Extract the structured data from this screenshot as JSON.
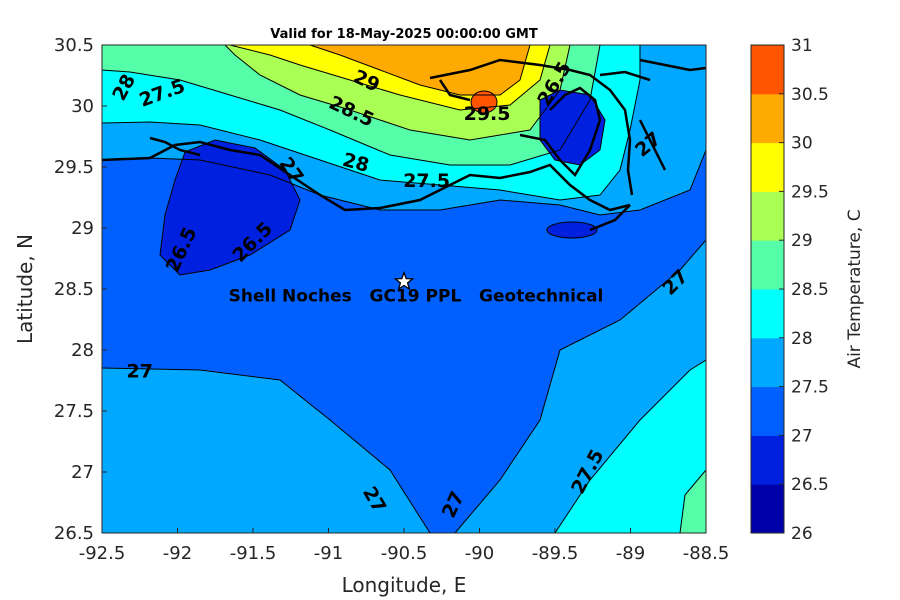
{
  "title": "Valid for 18-May-2025 00:00:00 GMT",
  "map": {
    "xlabel": "Longitude, E",
    "ylabel": "Latitude, N",
    "xlim": [
      -92.5,
      -88.5
    ],
    "ylim": [
      26.5,
      30.5
    ],
    "x_ticks": [
      "-92.5",
      "-92",
      "-91.5",
      "-91",
      "-90.5",
      "-90",
      "-89.5",
      "-89",
      "-88.5"
    ],
    "y_ticks": [
      "26.5",
      "27",
      "27.5",
      "28",
      "28.5",
      "29",
      "29.5",
      "30",
      "30.5"
    ],
    "contour_labels": [
      {
        "text": "28",
        "lon": -92.35,
        "lat": 30.15,
        "rot": -62
      },
      {
        "text": "27.5",
        "lon": -92.1,
        "lat": 30.1,
        "rot": -20
      },
      {
        "text": "29",
        "lon": -90.75,
        "lat": 30.2,
        "rot": 25
      },
      {
        "text": "28.5",
        "lon": -90.85,
        "lat": 29.95,
        "rot": 25
      },
      {
        "text": "29.5",
        "lon": -89.95,
        "lat": 29.93,
        "rot": 0
      },
      {
        "text": "28",
        "lon": -90.82,
        "lat": 29.53,
        "rot": 15
      },
      {
        "text": "27.5",
        "lon": -90.35,
        "lat": 29.38,
        "rot": 0
      },
      {
        "text": "27",
        "lon": -91.25,
        "lat": 29.47,
        "rot": 55
      },
      {
        "text": "26.5",
        "lon": -91.5,
        "lat": 28.88,
        "rot": -45
      },
      {
        "text": "26.5",
        "lon": -91.97,
        "lat": 28.82,
        "rot": -65
      },
      {
        "text": "27",
        "lon": -92.25,
        "lat": 27.82,
        "rot": 0
      },
      {
        "text": "27",
        "lon": -90.7,
        "lat": 26.77,
        "rot": 60
      },
      {
        "text": "27",
        "lon": -90.17,
        "lat": 26.73,
        "rot": -65
      },
      {
        "text": "27.5",
        "lon": -89.28,
        "lat": 27.0,
        "rot": -62
      },
      {
        "text": "27",
        "lon": -88.7,
        "lat": 28.55,
        "rot": -45
      },
      {
        "text": "27",
        "lon": -88.88,
        "lat": 29.68,
        "rot": -40
      },
      {
        "text": "26.5",
        "lon": -89.5,
        "lat": 30.18,
        "rot": -60
      }
    ],
    "site": {
      "lon": -90.5,
      "lat": 28.56,
      "label": "Shell Noches   GC19 PPL   Geotechnical"
    }
  },
  "colorbar": {
    "label": "Air Temperature, C",
    "levels": [
      "26",
      "26.5",
      "27",
      "27.5",
      "28",
      "28.5",
      "29",
      "29.5",
      "30",
      "30.5",
      "31"
    ],
    "colors": [
      "#0000aa",
      "#0020e0",
      "#0060ff",
      "#00a8ff",
      "#00ffff",
      "#55ffaa",
      "#aaff55",
      "#ffff00",
      "#ffaa00",
      "#ff5500",
      "#ff0000"
    ]
  }
}
